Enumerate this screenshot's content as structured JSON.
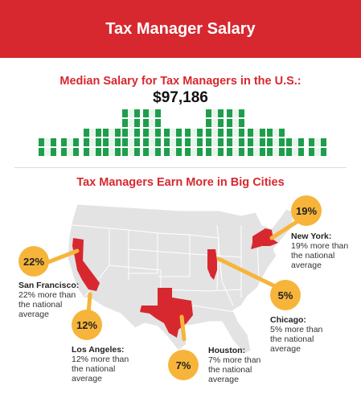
{
  "header": {
    "title": "Tax Manager Salary"
  },
  "median": {
    "label": "Median Salary for Tax Managers in the U.S.:",
    "value": "$97,186"
  },
  "cities_heading": "Tax Managers Earn More in Big Cities",
  "colors": {
    "brand_red": "#d7282f",
    "bubble_gold": "#f6b53a",
    "money_green": "#1e9e4d",
    "map_gray": "#e3e3e3"
  },
  "cities": [
    {
      "name": "San Francisco:",
      "percent": "22%",
      "desc_1": "22% more than",
      "desc_2": "the national",
      "desc_3": "average"
    },
    {
      "name": "Los Angeles:",
      "percent": "12%",
      "desc_1": "12% more than",
      "desc_2": "the national",
      "desc_3": "average"
    },
    {
      "name": "Houston:",
      "percent": "7%",
      "desc_1": "7% more than",
      "desc_2": "the national",
      "desc_3": "average"
    },
    {
      "name": "Chicago:",
      "percent": "5%",
      "desc_1": "5% more than",
      "desc_2": "the national",
      "desc_3": "average"
    },
    {
      "name": "New York:",
      "percent": "19%",
      "desc_1": "19% more than",
      "desc_2": "the national",
      "desc_3": "average"
    }
  ]
}
